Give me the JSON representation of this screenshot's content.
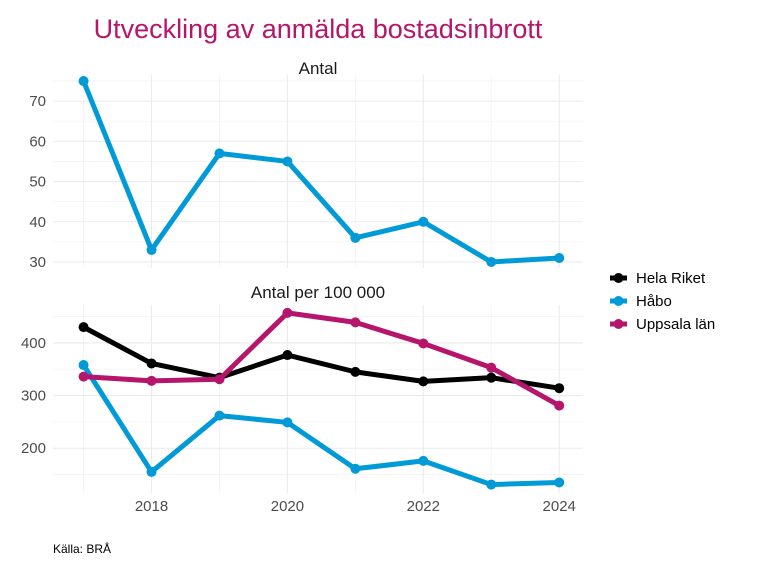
{
  "chart_data": {
    "type": "line",
    "title": "Utveckling av anmälda bostadsinbrott",
    "caption": "Källa: BRÅ",
    "x": [
      2017,
      2018,
      2019,
      2020,
      2021,
      2022,
      2023,
      2024
    ],
    "xticks": [
      2018,
      2020,
      2022,
      2024
    ],
    "xlim": [
      2016.55,
      2024.35
    ],
    "grid": true,
    "legend_position": "right",
    "legend": [
      {
        "name": "Hela Riket",
        "color": "#000000"
      },
      {
        "name": "Håbo",
        "color": "#009AD7"
      },
      {
        "name": "Uppsala län",
        "color": "#B5166B"
      }
    ],
    "panels": [
      {
        "title": "Antal",
        "ylim": [
          28.5,
          76.5
        ],
        "yticks": [
          30,
          40,
          50,
          60,
          70
        ],
        "series": [
          {
            "name": "Håbo",
            "color": "#009AD7",
            "values": [
              75,
              33,
              57,
              55,
              36,
              40,
              30,
              31
            ]
          }
        ]
      },
      {
        "title": "Antal per 100 000",
        "ylim": [
          115,
          472
        ],
        "yticks": [
          200,
          300,
          400
        ],
        "series": [
          {
            "name": "Hela Riket",
            "color": "#000000",
            "values": [
              430,
              361,
              334,
              377,
              345,
              327,
              334,
              314
            ]
          },
          {
            "name": "Håbo",
            "color": "#009AD7",
            "values": [
              358,
              155,
              262,
              249,
              161,
              176,
              131,
              135
            ]
          },
          {
            "name": "Uppsala län",
            "color": "#B5166B",
            "values": [
              336,
              328,
              331,
              457,
              439,
              399,
              353,
              281
            ]
          }
        ]
      }
    ]
  }
}
